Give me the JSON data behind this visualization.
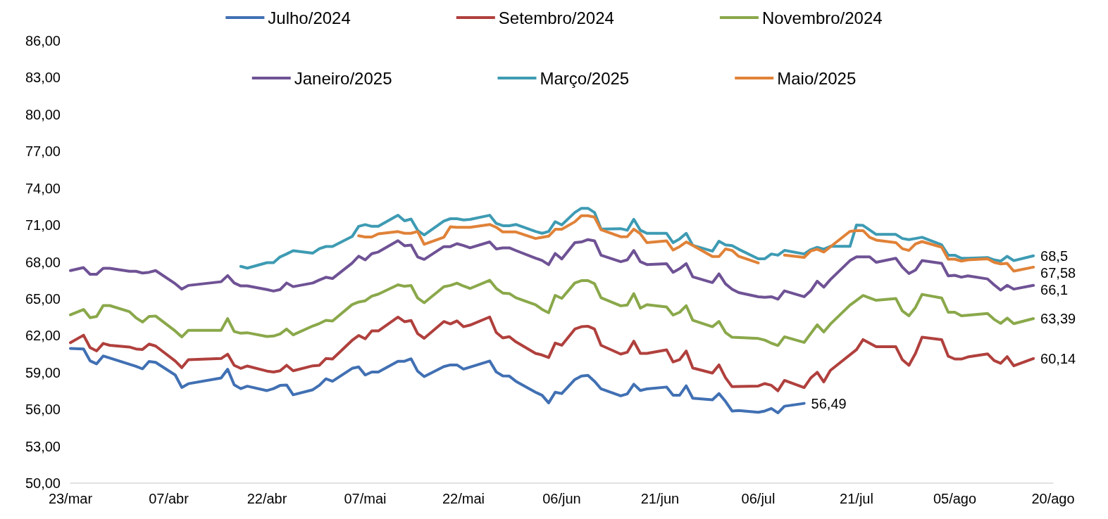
{
  "chart_data": {
    "type": "line",
    "xlim": [
      "--03-23",
      "--08-20"
    ],
    "xticks": [
      {
        "value": "--03-23",
        "label": "23/mar"
      },
      {
        "value": "--04-07",
        "label": "07/abr"
      },
      {
        "value": "--04-22",
        "label": "22/abr"
      },
      {
        "value": "--05-07",
        "label": "07/mai"
      },
      {
        "value": "--05-22",
        "label": "22/mai"
      },
      {
        "value": "--06-06",
        "label": "06/jun"
      },
      {
        "value": "--06-21",
        "label": "21/jun"
      },
      {
        "value": "--07-06",
        "label": "06/jul"
      },
      {
        "value": "--07-21",
        "label": "21/jul"
      },
      {
        "value": "--08-05",
        "label": "05/ago"
      },
      {
        "value": "--08-20",
        "label": "20/ago"
      }
    ],
    "ylim": [
      50,
      86
    ],
    "yticks": [
      {
        "value": 50,
        "label": "50,00"
      },
      {
        "value": 53,
        "label": "53,00"
      },
      {
        "value": 56,
        "label": "56,00"
      },
      {
        "value": 59,
        "label": "59,00"
      },
      {
        "value": 62,
        "label": "62,00"
      },
      {
        "value": 65,
        "label": "65,00"
      },
      {
        "value": 68,
        "label": "68,00"
      },
      {
        "value": 71,
        "label": "71,00"
      },
      {
        "value": 74,
        "label": "74,00"
      },
      {
        "value": 77,
        "label": "77,00"
      },
      {
        "value": 80,
        "label": "80,00"
      },
      {
        "value": 83,
        "label": "83,00"
      },
      {
        "value": 86,
        "label": "86,00"
      }
    ],
    "grid": false,
    "legend": "top",
    "marker": "none",
    "line_style": "solid",
    "series": [
      {
        "name": "Julho/2024",
        "color": "#4170b3",
        "x": [
          "--03-23",
          "--03-25",
          "--03-26",
          "--03-27",
          "--03-28",
          "--04-02",
          "--04-03",
          "--04-04",
          "--04-05",
          "--04-08",
          "--04-09",
          "--04-10",
          "--04-15",
          "--04-16",
          "--04-17",
          "--04-18",
          "--04-19",
          "--04-22",
          "--04-23",
          "--04-24",
          "--04-25",
          "--04-26",
          "--04-29",
          "--04-30",
          "--05-01",
          "--05-02",
          "--05-05",
          "--05-06",
          "--05-07",
          "--05-08",
          "--05-09",
          "--05-12",
          "--05-13",
          "--05-14",
          "--05-15",
          "--05-16",
          "--05-19",
          "--05-20",
          "--05-21",
          "--05-22",
          "--05-26",
          "--05-27",
          "--05-28",
          "--05-29",
          "--05-30",
          "--06-02",
          "--06-03",
          "--06-04",
          "--06-05",
          "--06-06",
          "--06-08",
          "--06-09",
          "--06-10",
          "--06-11",
          "--06-12",
          "--06-15",
          "--06-16",
          "--06-17",
          "--06-18",
          "--06-19",
          "--06-22",
          "--06-23",
          "--06-24",
          "--06-25",
          "--06-26",
          "--06-29",
          "--06-30",
          "--07-01",
          "--07-02",
          "--07-03",
          "--07-06",
          "--07-07",
          "--07-08",
          "--07-09",
          "--07-10",
          "--07-13"
        ],
        "values": [
          60.96,
          60.92,
          59.95,
          59.71,
          60.35,
          59.51,
          59.3,
          59.9,
          59.83,
          58.8,
          57.79,
          58.09,
          58.56,
          59.27,
          58.0,
          57.69,
          57.89,
          57.53,
          57.69,
          57.95,
          57.99,
          57.19,
          57.6,
          57.96,
          58.49,
          58.29,
          59.34,
          59.46,
          58.8,
          59.04,
          59.04,
          59.92,
          59.92,
          60.12,
          59.11,
          58.67,
          59.49,
          59.62,
          59.62,
          59.28,
          59.94,
          59.05,
          58.73,
          58.71,
          58.29,
          57.4,
          57.15,
          56.53,
          57.4,
          57.29,
          58.43,
          58.71,
          58.77,
          58.29,
          57.67,
          57.1,
          57.26,
          58.05,
          57.54,
          57.67,
          57.82,
          57.16,
          57.16,
          57.92,
          56.91,
          56.78,
          57.29,
          56.65,
          55.87,
          55.91,
          55.77,
          55.87,
          56.07,
          55.72,
          56.26,
          56.49
        ]
      },
      {
        "name": "Setembro/2024",
        "color": "#b0403d",
        "x": [
          "--03-23",
          "--03-25",
          "--03-26",
          "--03-27",
          "--03-28",
          "--03-29",
          "--04-01",
          "--04-02",
          "--04-03",
          "--04-04",
          "--04-05",
          "--04-08",
          "--04-09",
          "--04-10",
          "--04-15",
          "--04-16",
          "--04-17",
          "--04-18",
          "--04-19",
          "--04-22",
          "--04-23",
          "--04-24",
          "--04-25",
          "--04-26",
          "--04-29",
          "--04-30",
          "--05-01",
          "--05-02",
          "--05-05",
          "--05-06",
          "--05-07",
          "--05-08",
          "--05-09",
          "--05-12",
          "--05-13",
          "--05-14",
          "--05-15",
          "--05-16",
          "--05-19",
          "--05-20",
          "--05-21",
          "--05-22",
          "--05-23",
          "--05-26",
          "--05-27",
          "--05-28",
          "--05-29",
          "--05-30",
          "--06-02",
          "--06-03",
          "--06-04",
          "--06-05",
          "--06-06",
          "--06-08",
          "--06-09",
          "--06-10",
          "--06-11",
          "--06-12",
          "--06-15",
          "--06-16",
          "--06-17",
          "--06-18",
          "--06-19",
          "--06-22",
          "--06-23",
          "--06-24",
          "--06-25",
          "--06-26",
          "--06-29",
          "--06-30",
          "--07-01",
          "--07-02",
          "--07-06",
          "--07-07",
          "--07-08",
          "--07-09",
          "--07-10",
          "--07-13",
          "--07-14",
          "--07-15",
          "--07-16",
          "--07-17",
          "--07-21",
          "--07-22",
          "--07-24",
          "--07-27",
          "--07-28",
          "--07-29",
          "--07-30",
          "--07-31",
          "--08-03",
          "--08-04",
          "--08-05",
          "--08-06",
          "--08-07",
          "--08-10",
          "--08-11",
          "--08-12",
          "--08-13",
          "--08-14",
          "--08-17"
        ],
        "values": [
          61.43,
          62.04,
          61.03,
          60.76,
          61.37,
          61.22,
          61.08,
          60.92,
          60.88,
          61.32,
          61.16,
          59.94,
          59.4,
          60.04,
          60.14,
          60.5,
          59.59,
          59.34,
          59.53,
          59.12,
          59.04,
          59.14,
          59.59,
          59.14,
          59.55,
          59.59,
          60.14,
          60.1,
          61.62,
          62.02,
          61.75,
          62.39,
          62.39,
          63.51,
          63.14,
          63.24,
          62.17,
          61.79,
          63.15,
          62.96,
          63.2,
          62.73,
          62.86,
          63.52,
          62.26,
          61.82,
          61.92,
          61.5,
          60.56,
          60.43,
          60.22,
          61.4,
          61.22,
          62.54,
          62.73,
          62.77,
          62.54,
          61.22,
          60.5,
          60.65,
          61.55,
          60.56,
          60.56,
          60.85,
          59.86,
          60.05,
          60.75,
          59.37,
          58.96,
          59.62,
          58.58,
          57.85,
          57.9,
          58.1,
          57.96,
          57.52,
          58.36,
          57.78,
          58.55,
          59.02,
          58.24,
          59.17,
          60.87,
          61.68,
          61.1,
          61.1,
          60.04,
          59.59,
          60.56,
          61.88,
          61.68,
          60.33,
          60.1,
          60.1,
          60.27,
          60.52,
          59.98,
          59.75,
          60.29,
          59.55,
          60.14
        ]
      },
      {
        "name": "Novembro/2024",
        "color": "#8aa84a",
        "x": [
          "--03-23",
          "--03-25",
          "--03-26",
          "--03-27",
          "--03-28",
          "--03-29",
          "--04-01",
          "--04-02",
          "--04-03",
          "--04-04",
          "--04-05",
          "--04-08",
          "--04-09",
          "--04-10",
          "--04-15",
          "--04-16",
          "--04-17",
          "--04-18",
          "--04-19",
          "--04-22",
          "--04-23",
          "--04-24",
          "--04-25",
          "--04-26",
          "--04-29",
          "--04-30",
          "--05-01",
          "--05-02",
          "--05-05",
          "--05-06",
          "--05-07",
          "--05-08",
          "--05-09",
          "--05-12",
          "--05-13",
          "--05-14",
          "--05-15",
          "--05-16",
          "--05-19",
          "--05-20",
          "--05-21",
          "--05-22",
          "--05-23",
          "--05-26",
          "--05-27",
          "--05-28",
          "--05-29",
          "--05-30",
          "--06-02",
          "--06-03",
          "--06-04",
          "--06-05",
          "--06-06",
          "--06-08",
          "--06-09",
          "--06-10",
          "--06-11",
          "--06-12",
          "--06-15",
          "--06-16",
          "--06-17",
          "--06-18",
          "--06-19",
          "--06-22",
          "--06-23",
          "--06-24",
          "--06-25",
          "--06-26",
          "--06-29",
          "--06-30",
          "--07-01",
          "--07-02",
          "--07-06",
          "--07-07",
          "--07-08",
          "--07-09",
          "--07-10",
          "--07-13",
          "--07-14",
          "--07-15",
          "--07-16",
          "--07-17",
          "--07-20",
          "--07-21",
          "--07-22",
          "--07-24",
          "--07-27",
          "--07-28",
          "--07-29",
          "--07-30",
          "--07-31",
          "--08-03",
          "--08-04",
          "--08-05",
          "--08-06",
          "--08-07",
          "--08-10",
          "--08-11",
          "--08-12",
          "--08-13",
          "--08-14",
          "--08-17"
        ],
        "values": [
          63.7,
          64.13,
          63.46,
          63.56,
          64.45,
          64.45,
          63.96,
          63.46,
          63.11,
          63.56,
          63.6,
          62.38,
          61.9,
          62.44,
          62.44,
          63.39,
          62.34,
          62.2,
          62.24,
          61.93,
          61.97,
          62.14,
          62.54,
          62.07,
          62.79,
          62.99,
          63.25,
          63.19,
          64.53,
          64.74,
          64.84,
          65.22,
          65.38,
          66.14,
          66.02,
          66.08,
          65.07,
          64.68,
          65.98,
          66.09,
          66.28,
          66.04,
          65.84,
          66.51,
          65.85,
          65.47,
          65.43,
          65.09,
          64.52,
          64.14,
          63.87,
          65.28,
          65.04,
          66.29,
          66.48,
          66.48,
          66.23,
          65.09,
          64.43,
          64.49,
          65.42,
          64.24,
          64.52,
          64.34,
          63.68,
          63.91,
          64.44,
          63.26,
          62.73,
          63.16,
          62.26,
          61.87,
          61.77,
          61.64,
          61.39,
          61.2,
          61.91,
          61.45,
          62.17,
          62.88,
          62.3,
          62.94,
          64.49,
          64.88,
          65.27,
          64.88,
          65.03,
          64.01,
          63.62,
          64.3,
          65.36,
          65.07,
          63.91,
          63.91,
          63.62,
          63.66,
          63.81,
          63.33,
          63.0,
          63.43,
          62.98,
          63.39
        ]
      },
      {
        "name": "Janeiro/2025",
        "color": "#6f5295",
        "x": [
          "--03-23",
          "--03-25",
          "--03-26",
          "--03-27",
          "--03-28",
          "--03-29",
          "--04-01",
          "--04-02",
          "--04-03",
          "--04-04",
          "--04-05",
          "--04-08",
          "--04-09",
          "--04-10",
          "--04-15",
          "--04-16",
          "--04-17",
          "--04-18",
          "--04-19",
          "--04-22",
          "--04-23",
          "--04-24",
          "--04-25",
          "--04-26",
          "--04-29",
          "--04-30",
          "--05-01",
          "--05-02",
          "--05-05",
          "--05-06",
          "--05-07",
          "--05-08",
          "--05-09",
          "--05-12",
          "--05-13",
          "--05-14",
          "--05-15",
          "--05-16",
          "--05-19",
          "--05-20",
          "--05-21",
          "--05-22",
          "--05-23",
          "--05-26",
          "--05-27",
          "--05-28",
          "--05-29",
          "--05-30",
          "--06-02",
          "--06-03",
          "--06-04",
          "--06-05",
          "--06-06",
          "--06-08",
          "--06-09",
          "--06-10",
          "--06-11",
          "--06-12",
          "--06-15",
          "--06-16",
          "--06-17",
          "--06-18",
          "--06-19",
          "--06-22",
          "--06-23",
          "--06-24",
          "--06-25",
          "--06-26",
          "--06-29",
          "--06-30",
          "--07-01",
          "--07-02",
          "--07-03",
          "--07-06",
          "--07-07",
          "--07-08",
          "--07-09",
          "--07-10",
          "--07-13",
          "--07-14",
          "--07-15",
          "--07-16",
          "--07-17",
          "--07-20",
          "--07-21",
          "--07-22",
          "--07-23",
          "--07-24",
          "--07-27",
          "--07-28",
          "--07-29",
          "--07-30",
          "--07-31",
          "--08-03",
          "--08-04",
          "--08-05",
          "--08-06",
          "--08-07",
          "--08-10",
          "--08-11",
          "--08-12",
          "--08-13",
          "--08-14",
          "--08-17"
        ],
        "values": [
          67.3,
          67.54,
          67.0,
          67.0,
          67.48,
          67.48,
          67.24,
          67.24,
          67.1,
          67.16,
          67.3,
          66.23,
          65.79,
          66.09,
          66.39,
          66.89,
          66.29,
          66.05,
          66.05,
          65.75,
          65.63,
          65.75,
          66.29,
          65.99,
          66.29,
          66.53,
          66.75,
          66.65,
          67.91,
          68.47,
          68.17,
          68.67,
          68.81,
          69.73,
          69.32,
          69.38,
          68.41,
          68.21,
          69.25,
          69.25,
          69.49,
          69.34,
          69.15,
          69.63,
          69.06,
          69.15,
          69.15,
          68.93,
          68.31,
          68.12,
          67.78,
          68.69,
          68.25,
          69.57,
          69.63,
          69.82,
          69.72,
          68.55,
          68.02,
          68.17,
          68.93,
          68.02,
          67.79,
          67.86,
          67.16,
          67.45,
          67.86,
          66.79,
          66.32,
          67.03,
          66.22,
          65.78,
          65.51,
          65.17,
          65.13,
          65.17,
          64.97,
          65.65,
          65.17,
          65.65,
          66.43,
          65.95,
          66.56,
          68.11,
          68.42,
          68.42,
          68.42,
          67.97,
          68.3,
          67.58,
          67.06,
          67.34,
          68.11,
          67.88,
          66.87,
          66.91,
          66.76,
          66.87,
          66.62,
          66.14,
          65.71,
          66.1,
          65.79,
          66.1
        ]
      },
      {
        "name": "Março/2025",
        "color": "#3e9bb3",
        "x": [
          "--04-18",
          "--04-19",
          "--04-22",
          "--04-23",
          "--04-24",
          "--04-25",
          "--04-26",
          "--04-29",
          "--04-30",
          "--05-01",
          "--05-02",
          "--05-05",
          "--05-06",
          "--05-07",
          "--05-08",
          "--05-09",
          "--05-12",
          "--05-13",
          "--05-14",
          "--05-15",
          "--05-16",
          "--05-19",
          "--05-20",
          "--05-21",
          "--05-22",
          "--05-23",
          "--05-26",
          "--05-27",
          "--05-28",
          "--05-29",
          "--05-30",
          "--06-02",
          "--06-03",
          "--06-04",
          "--06-05",
          "--06-06",
          "--06-08",
          "--06-09",
          "--06-10",
          "--06-11",
          "--06-12",
          "--06-15",
          "--06-16",
          "--06-17",
          "--06-18",
          "--06-19",
          "--06-22",
          "--06-23",
          "--06-24",
          "--06-25",
          "--06-26",
          "--06-29",
          "--06-30",
          "--07-01",
          "--07-02",
          "--07-03",
          "--07-06",
          "--07-07",
          "--07-08",
          "--07-09",
          "--07-10",
          "--07-13",
          "--07-14",
          "--07-15",
          "--07-16",
          "--07-17",
          "--07-20",
          "--07-21",
          "--07-22",
          "--07-24",
          "--07-27",
          "--07-28",
          "--07-29",
          "--07-30",
          "--07-31",
          "--08-03",
          "--08-04",
          "--08-05",
          "--08-06",
          "--08-07",
          "--08-10",
          "--08-11",
          "--08-12",
          "--08-13",
          "--08-14",
          "--08-17"
        ],
        "values": [
          67.64,
          67.5,
          67.94,
          67.94,
          68.41,
          68.65,
          68.92,
          68.72,
          69.08,
          69.26,
          69.26,
          70.07,
          70.9,
          71.04,
          70.9,
          70.9,
          71.81,
          71.35,
          71.49,
          70.57,
          70.2,
          71.33,
          71.52,
          71.52,
          71.42,
          71.46,
          71.8,
          71.14,
          70.95,
          70.95,
          71.05,
          70.48,
          70.33,
          70.48,
          71.28,
          71.02,
          72.03,
          72.37,
          72.37,
          72.03,
          70.67,
          70.71,
          70.58,
          71.47,
          70.58,
          70.33,
          70.33,
          69.57,
          69.88,
          70.33,
          69.35,
          68.88,
          69.69,
          69.39,
          69.33,
          69.04,
          68.26,
          68.26,
          68.65,
          68.55,
          68.94,
          68.65,
          69.0,
          69.19,
          69.04,
          69.27,
          69.27,
          71.01,
          70.97,
          70.24,
          70.24,
          69.91,
          69.82,
          69.91,
          70.01,
          69.39,
          68.55,
          68.55,
          68.3,
          68.3,
          68.36,
          68.17,
          68.07,
          68.46,
          68.11,
          68.5
        ]
      },
      {
        "name": "Maio/2025",
        "color": "#e08238",
        "x": [
          "--05-06",
          "--05-07",
          "--05-08",
          "--05-09",
          "--05-12",
          "--05-13",
          "--05-14",
          "--05-15",
          "--05-16",
          "--05-19",
          "--05-20",
          "--05-21",
          "--05-22",
          "--05-23",
          "--05-26",
          "--05-27",
          "--05-28",
          "--05-29",
          "--05-30",
          "--06-02",
          "--06-03",
          "--06-04",
          "--06-05",
          "--06-06",
          "--06-08",
          "--06-09",
          "--06-10",
          "--06-11",
          "--06-12",
          "--06-15",
          "--06-16",
          "--06-17",
          "--06-18",
          "--06-19",
          "--06-22",
          "--06-23",
          "--06-24",
          "--06-25",
          "--06-26",
          "--06-29",
          "--06-30",
          "--07-01",
          "--07-02",
          "--07-03",
          "--07-06",
          "--07-08",
          "--07-10",
          "--07-13",
          "--07-14",
          "--07-15",
          "--07-16",
          "--07-17",
          "--07-20",
          "--07-21",
          "--07-22",
          "--07-23",
          "--07-24",
          "--07-27",
          "--07-28",
          "--07-29",
          "--07-30",
          "--07-31",
          "--08-03",
          "--08-04",
          "--08-05",
          "--08-06",
          "--08-07",
          "--08-10",
          "--08-11",
          "--08-12",
          "--08-13",
          "--08-14",
          "--08-17"
        ],
        "values": [
          70.13,
          70.03,
          70.03,
          70.29,
          70.47,
          70.33,
          70.33,
          70.48,
          69.44,
          70.01,
          70.86,
          70.82,
          70.82,
          70.82,
          71.05,
          70.82,
          70.44,
          70.44,
          70.44,
          69.91,
          70.0,
          70.1,
          70.66,
          70.66,
          71.27,
          71.76,
          71.76,
          71.65,
          70.62,
          70.05,
          70.06,
          70.67,
          70.29,
          69.57,
          69.72,
          68.97,
          69.25,
          69.63,
          69.35,
          68.44,
          68.44,
          69.06,
          68.94,
          68.46,
          67.92,
          null,
          68.56,
          68.37,
          68.89,
          69.04,
          68.81,
          69.23,
          70.49,
          70.55,
          70.55,
          70.01,
          69.78,
          69.58,
          69.08,
          68.94,
          69.47,
          69.66,
          69.2,
          68.23,
          68.23,
          68.07,
          68.17,
          68.26,
          67.97,
          67.84,
          67.88,
          67.26,
          67.58
        ]
      }
    ],
    "annotations": [
      {
        "text": "68,5",
        "x": "--08-17",
        "y": 68.5
      },
      {
        "text": "67,58",
        "x": "--08-17",
        "y": 67.58
      },
      {
        "text": "66,1",
        "x": "--08-17",
        "y": 66.1
      },
      {
        "text": "63,39",
        "x": "--08-17",
        "y": 63.39
      },
      {
        "text": "60,14",
        "x": "--08-17",
        "y": 60.14
      },
      {
        "text": "56,49",
        "x": "--07-13",
        "y": 56.49
      }
    ]
  }
}
